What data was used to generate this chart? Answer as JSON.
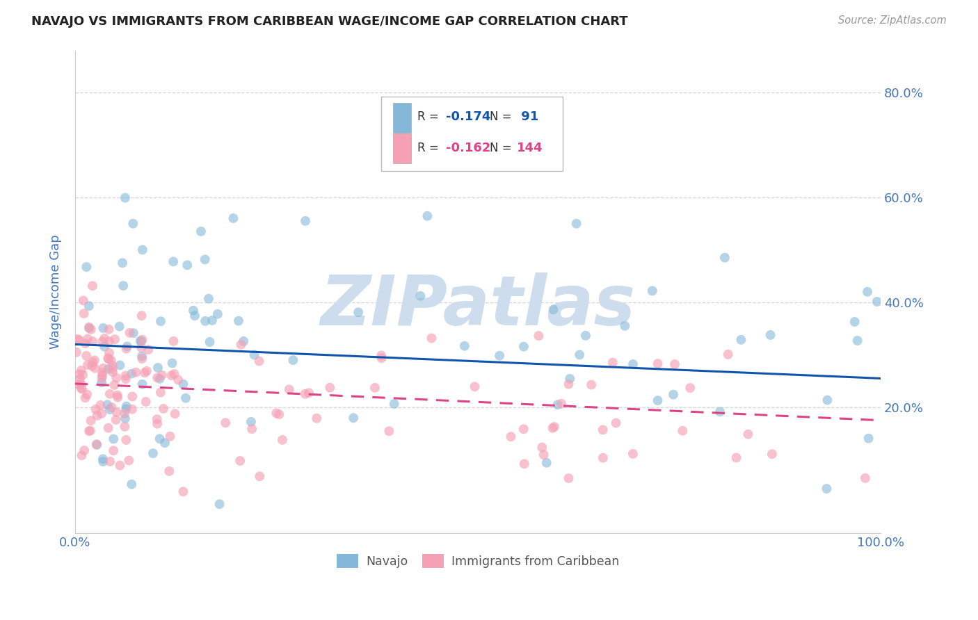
{
  "title": "NAVAJO VS IMMIGRANTS FROM CARIBBEAN WAGE/INCOME GAP CORRELATION CHART",
  "source_text": "Source: ZipAtlas.com",
  "ylabel": "Wage/Income Gap",
  "xlim": [
    0.0,
    1.0
  ],
  "ylim": [
    -0.04,
    0.88
  ],
  "ytick_positions": [
    0.2,
    0.4,
    0.6,
    0.8
  ],
  "ytick_labels": [
    "20.0%",
    "40.0%",
    "60.0%",
    "80.0%"
  ],
  "navajo_R": -0.174,
  "navajo_N": 91,
  "carib_R": -0.162,
  "carib_N": 144,
  "navajo_color": "#85b8d8",
  "carib_color": "#f5a0b5",
  "navajo_line_color": "#1155aa",
  "carib_line_color": "#dd4488",
  "watermark_text": "ZIPatlas",
  "watermark_color": "#cddded",
  "background_color": "#ffffff",
  "grid_color": "#cccccc",
  "title_color": "#222222",
  "tick_label_color": "#4477bb",
  "navajo_seed": 42,
  "carib_seed": 17,
  "nav_trend_x0": 0.32,
  "nav_trend_x1": 0.255,
  "car_trend_x0": 0.245,
  "car_trend_x1": 0.175
}
